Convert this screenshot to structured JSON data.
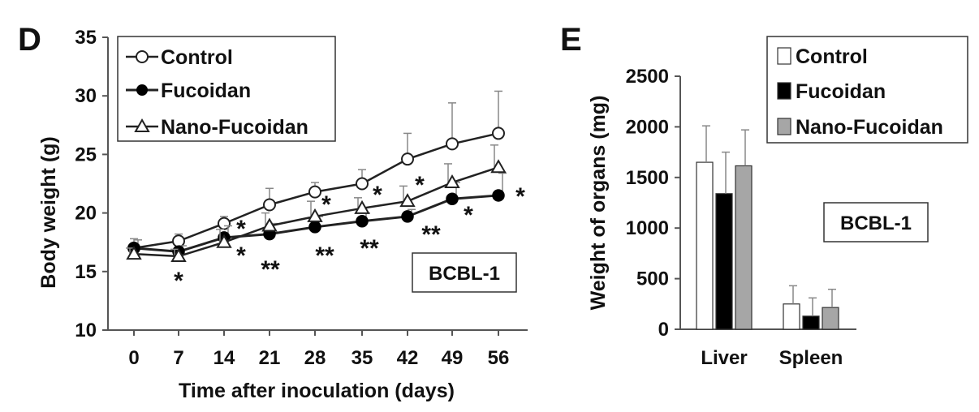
{
  "chart_data": [
    {
      "panel": "D",
      "type": "line",
      "xlabel": "Time after inoculation (days)",
      "ylabel": "Body weight (g)",
      "x": [
        0,
        7,
        14,
        21,
        28,
        35,
        42,
        49,
        56
      ],
      "x_ticks": [
        "0",
        "7",
        "14",
        "21",
        "28",
        "35",
        "42",
        "49",
        "56"
      ],
      "ylim": [
        10,
        35
      ],
      "y_ticks": [
        "10",
        "15",
        "20",
        "25",
        "30",
        "35"
      ],
      "legend_position": "top-left",
      "annotation_box": "BCBL-1",
      "series": [
        {
          "name": "Control",
          "marker": "open-circle",
          "values": [
            17.0,
            17.6,
            19.1,
            20.7,
            21.8,
            22.5,
            24.6,
            25.9,
            26.8
          ],
          "errors": [
            0.8,
            0.6,
            0.6,
            1.4,
            0.8,
            1.2,
            2.2,
            3.5,
            3.6
          ]
        },
        {
          "name": "Fucoidan",
          "marker": "filled-circle",
          "values": [
            17.0,
            16.7,
            17.9,
            18.2,
            18.8,
            19.3,
            19.7,
            21.2,
            21.5
          ],
          "errors": [
            0.7,
            0.5,
            1.0,
            0.9,
            0.9,
            0.7,
            0.6,
            1.4,
            1.9
          ]
        },
        {
          "name": "Nano-Fucoidan",
          "marker": "open-triangle",
          "values": [
            16.5,
            16.3,
            17.5,
            18.9,
            19.7,
            20.4,
            21.0,
            22.6,
            23.9
          ],
          "errors": [
            0.5,
            0.6,
            1.1,
            1.1,
            1.3,
            0.9,
            1.3,
            1.6,
            1.9
          ]
        }
      ],
      "significance": [
        {
          "x": 7,
          "label": "*"
        },
        {
          "x": 14,
          "label": "*"
        },
        {
          "x": 14,
          "label": "*"
        },
        {
          "x": 21,
          "label": "**"
        },
        {
          "x": 28,
          "label": "*"
        },
        {
          "x": 28,
          "label": "**"
        },
        {
          "x": 35,
          "label": "*"
        },
        {
          "x": 35,
          "label": "**"
        },
        {
          "x": 42,
          "label": "*"
        },
        {
          "x": 42,
          "label": "**"
        },
        {
          "x": 49,
          "label": "*"
        },
        {
          "x": 56,
          "label": "*"
        }
      ]
    },
    {
      "panel": "E",
      "type": "bar",
      "ylabel": "Weight of organs (mg)",
      "categories": [
        "Liver",
        "Spleen"
      ],
      "ylim": [
        0,
        2500
      ],
      "y_ticks": [
        "0",
        "500",
        "1000",
        "1500",
        "2000",
        "2500"
      ],
      "legend_position": "top-right",
      "annotation_box": "BCBL-1",
      "series": [
        {
          "name": "Control",
          "color": "#ffffff",
          "values": [
            1650,
            250
          ],
          "errors": [
            360,
            180
          ]
        },
        {
          "name": "Fucoidan",
          "color": "#000000",
          "values": [
            1340,
            130
          ],
          "errors": [
            410,
            180
          ]
        },
        {
          "name": "Nano-Fucoidan",
          "color": "#a6a6a6",
          "values": [
            1615,
            215
          ],
          "errors": [
            355,
            180
          ]
        }
      ]
    }
  ]
}
